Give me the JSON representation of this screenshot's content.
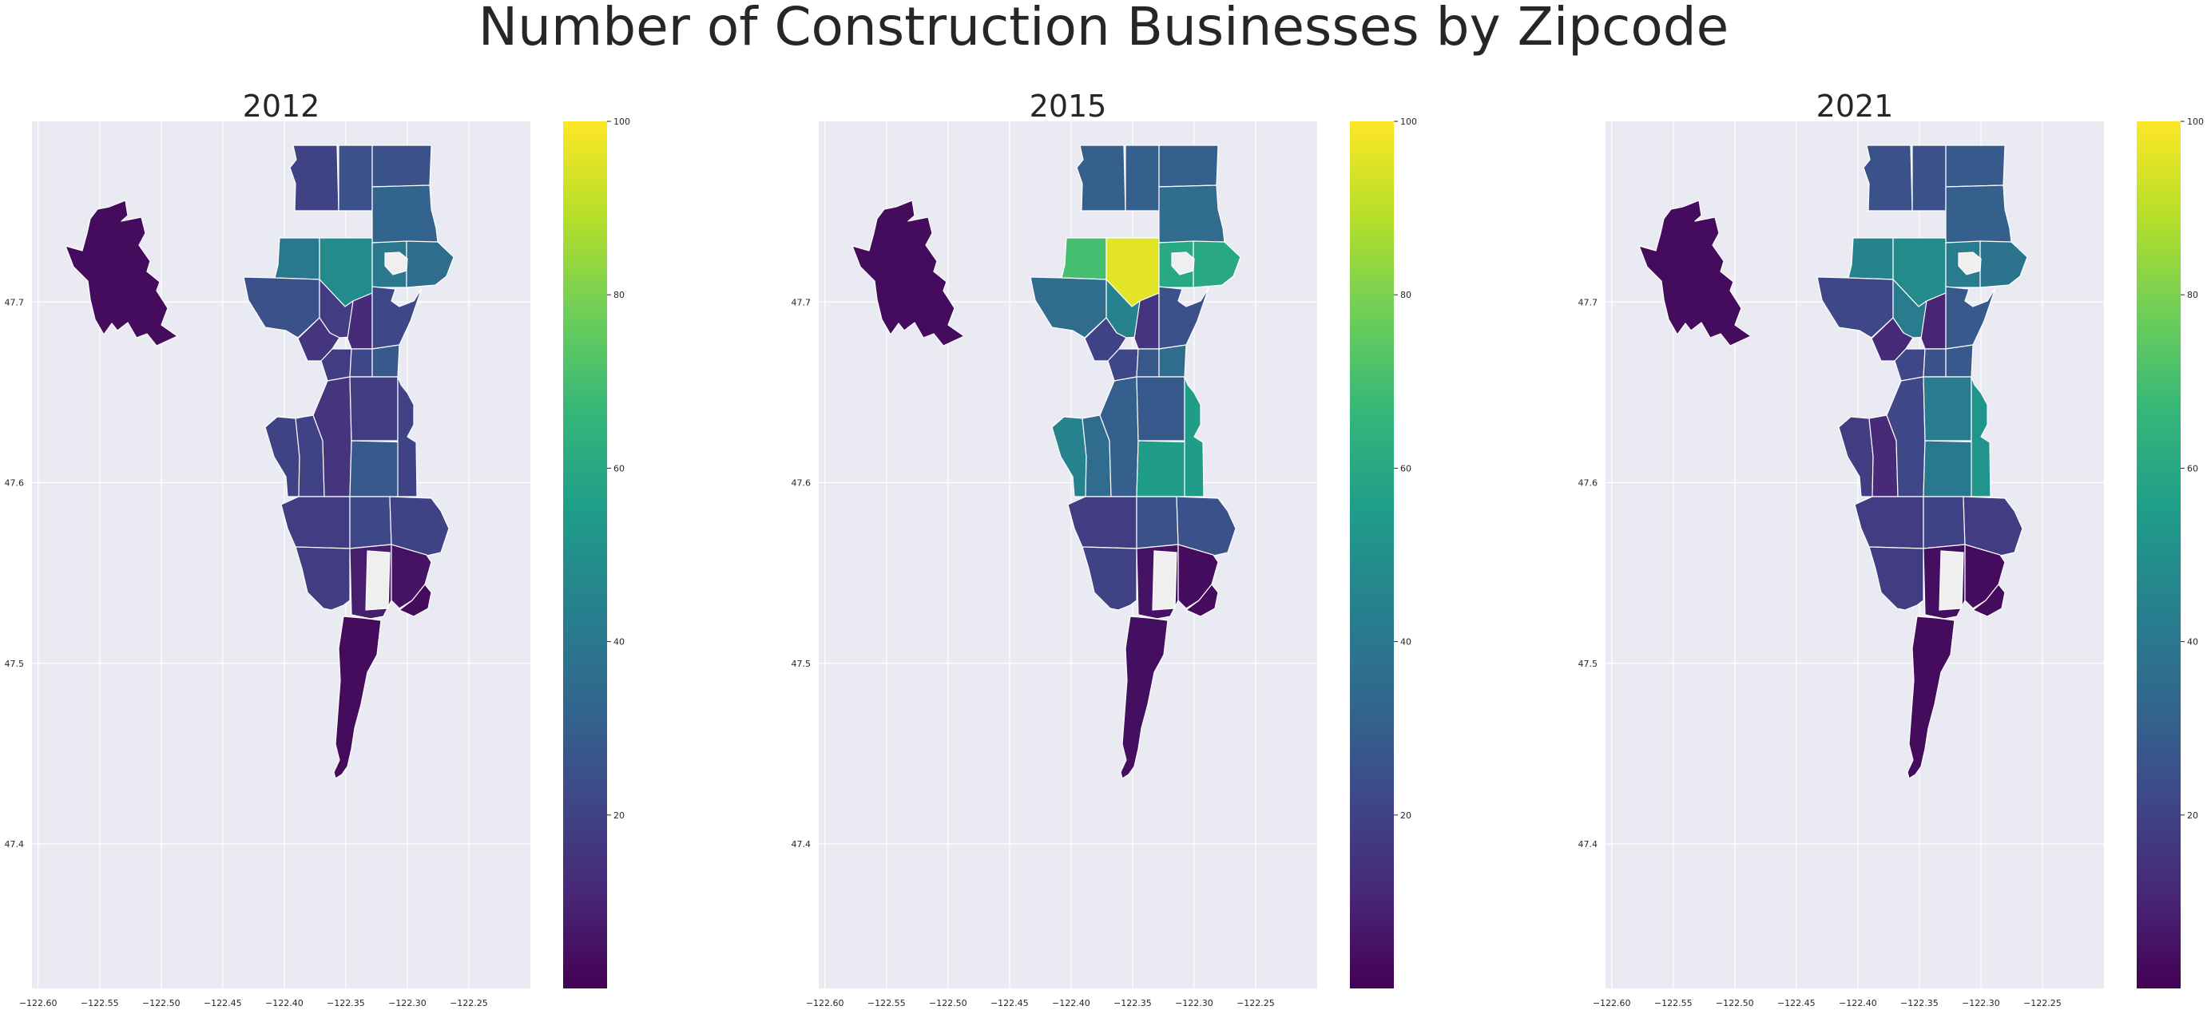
{
  "figure": {
    "title": "Number of Construction Businesses by Zipcode"
  },
  "colorbar": {
    "min": 0,
    "max": 100,
    "ticks": [
      20,
      40,
      60,
      80,
      100
    ],
    "colormap": "viridis"
  },
  "axes": {
    "x_ticks": [
      -122.6,
      -122.55,
      -122.5,
      -122.45,
      -122.4,
      -122.35,
      -122.3,
      -122.25
    ],
    "x_tick_labels": [
      "−122.60",
      "−122.55",
      "−122.50",
      "−122.45",
      "−122.40",
      "−122.35",
      "−122.30",
      "−122.25"
    ],
    "y_ticks": [
      47.4,
      47.5,
      47.6,
      47.7
    ],
    "y_tick_labels": [
      "47.4",
      "47.5",
      "47.6",
      "47.7"
    ],
    "xlim": [
      -122.605,
      -122.2
    ],
    "ylim": [
      47.32,
      47.8
    ],
    "background": "#eaeaf2",
    "grid": true
  },
  "chart_data": [
    {
      "type": "choropleth",
      "title": "2012",
      "regions": {
        "west_island": 3,
        "nw": 20,
        "n_mid": 25,
        "n_right": 25,
        "ne_top": 32,
        "ne_mid": 35,
        "r3a": 40,
        "r3b": 48,
        "r3c": 40,
        "r3d": 35,
        "r4a": 25,
        "r4b": 18,
        "r4c": 12,
        "r4d": 22,
        "r5a": 15,
        "r5b": 18,
        "r5c": 22,
        "r5d": 28,
        "r6a": 20,
        "r6b": 20,
        "r6c": 15,
        "r6d": 18,
        "r6e": 28,
        "r6f": 20,
        "r7a": 18,
        "r7b": 22,
        "r7c": 20,
        "r8a": 18,
        "r8b": 8,
        "r8c": 5,
        "r8d": 3,
        "s_tail": 3
      }
    },
    {
      "type": "choropleth",
      "title": "2015",
      "regions": {
        "west_island": 3,
        "nw": 30,
        "n_mid": 30,
        "n_right": 30,
        "ne_top": 35,
        "ne_mid": 45,
        "r3a": 70,
        "r3b": 96,
        "r3c": 60,
        "r3d": 60,
        "r4a": 35,
        "r4b": 45,
        "r4c": 15,
        "r4d": 25,
        "r5a": 20,
        "r5b": 22,
        "r5c": 28,
        "r5d": 35,
        "r6a": 45,
        "r6b": 35,
        "r6c": 30,
        "r6d": 28,
        "r6e": 55,
        "r6f": 55,
        "r7a": 18,
        "r7b": 25,
        "r7c": 25,
        "r8a": 20,
        "r8b": 5,
        "r8c": 3,
        "r8d": 3,
        "s_tail": 4
      }
    },
    {
      "type": "choropleth",
      "title": "2021",
      "regions": {
        "west_island": 3,
        "nw": 25,
        "n_mid": 25,
        "n_right": 28,
        "ne_top": 30,
        "ne_mid": 35,
        "r3a": 45,
        "r3b": 48,
        "r3c": 42,
        "r3d": 38,
        "r4a": 22,
        "r4b": 42,
        "r4c": 10,
        "r4d": 28,
        "r5a": 12,
        "r5b": 22,
        "r5c": 25,
        "r5d": 28,
        "r6a": 18,
        "r6b": 12,
        "r6c": 22,
        "r6d": 42,
        "r6e": 40,
        "r6f": 52,
        "r7a": 18,
        "r7b": 20,
        "r7c": 18,
        "r8a": 18,
        "r8b": 4,
        "r8c": 3,
        "r8d": 3,
        "s_tail": 3
      }
    }
  ]
}
